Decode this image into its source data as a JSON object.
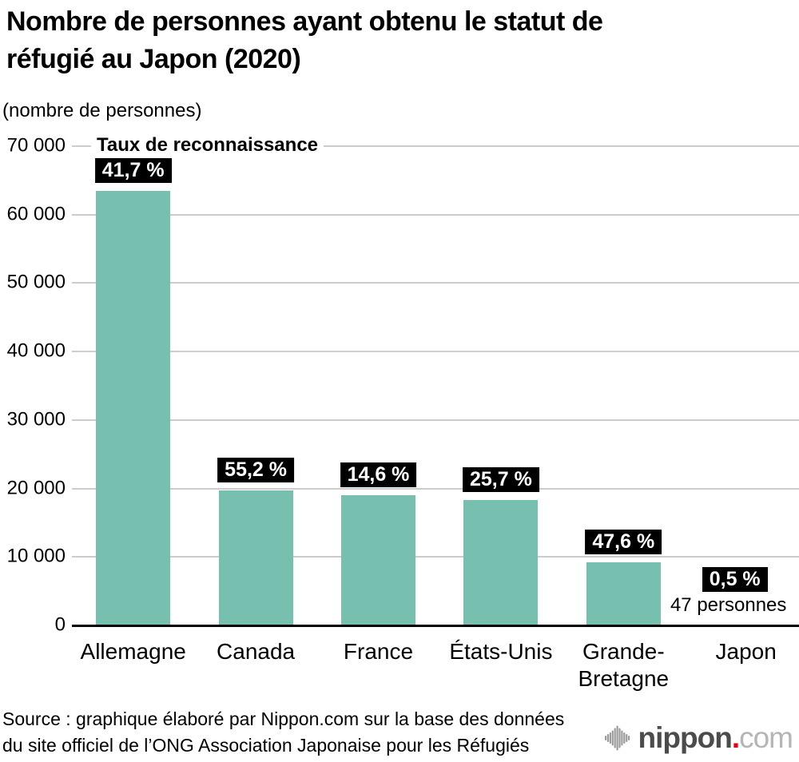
{
  "header": {
    "title_line1": "Nombre de personnes ayant obtenu le statut de",
    "title_line2": "réfugié au Japon (2020)",
    "subtitle": "(nombre de personnes)"
  },
  "chart_data": {
    "type": "bar",
    "title": "Nombre de personnes ayant obtenu le statut de réfugié au Japon (2020)",
    "ylabel": "(nombre de personnes)",
    "categories": [
      "Allemagne",
      "Canada",
      "France",
      "États-Unis",
      "Grande-Bretagne",
      "Japon"
    ],
    "values": [
      63500,
      19700,
      19000,
      18300,
      9200,
      47
    ],
    "rate_labels": [
      "41,7 %",
      "55,2 %",
      "14,6 %",
      "25,7 %",
      "47,6 %",
      "0,5 %"
    ],
    "recognition_rates_pct": [
      41.7,
      55.2,
      14.6,
      25.7,
      47.6,
      0.5
    ],
    "legend_label": "Taux de reconnaissance",
    "note": {
      "category_index": 5,
      "text": "47 personnes"
    },
    "y_ticks": [
      "70 000",
      "60 000",
      "50 000",
      "40 000",
      "30 000",
      "20 000",
      "10 000",
      "0"
    ],
    "ylim": [
      0,
      70000
    ],
    "grid": true,
    "legend_position": "top-left",
    "bar_color": "#77bfae",
    "grid_color": "#cccccc",
    "axis_color": "#000000",
    "badge_bg": "#000000",
    "badge_text_color": "#ffffff"
  },
  "source": {
    "line1": "Source : graphique élaboré par Nippon.com sur la base des données",
    "line2": "du site officiel de l’ONG Association Japonaise pour les Réfugiés"
  },
  "logo": {
    "name": "nippon",
    "dot": ".",
    "tld": "com"
  }
}
